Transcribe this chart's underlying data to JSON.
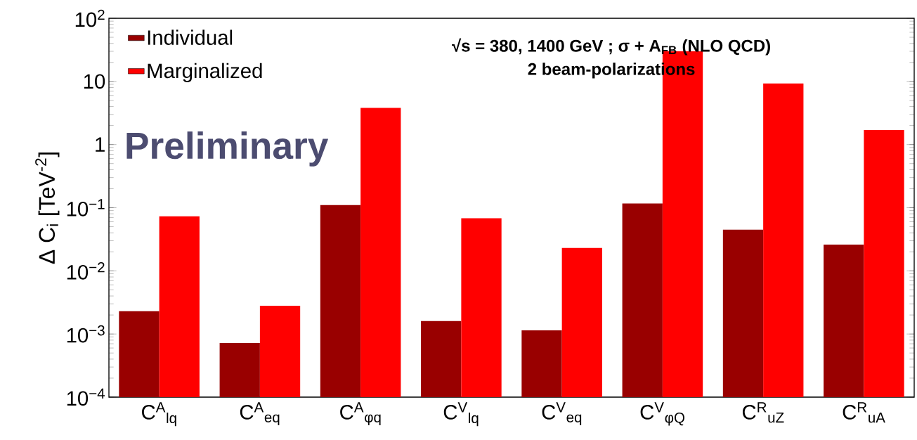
{
  "chart_data": {
    "type": "bar",
    "title": "√s = 380, 1400 GeV ; σ + A$_{FB}$ (NLO QCD)",
    "subtitle": "2 beam-polarizations",
    "ylabel": "Δ C$_{i}$ [TeV$^{-2}$]",
    "annotations": [
      "Preliminary"
    ],
    "categories": [
      "C$^{A}$$_{lq}$",
      "C$^{A}$$_{eq}$",
      "C$^{A}$$_{φq}$",
      "C$^{V}$$_{lq}$",
      "C$^{V}$$_{eq}$",
      "C$^{V}$$_{φQ}$",
      "C$^{R}$$_{uZ}$",
      "C$^{R}$$_{uA}$"
    ],
    "series": [
      {
        "name": "Individual",
        "color": "#990000",
        "values": [
          0.0023,
          0.00072,
          0.11,
          0.0016,
          0.00114,
          0.117,
          0.045,
          0.026
        ]
      },
      {
        "name": "Marginalized",
        "color": "#ff0000",
        "values": [
          0.073,
          0.0028,
          3.8,
          0.068,
          0.023,
          30,
          9.3,
          1.7
        ]
      }
    ],
    "log": "y",
    "ylim": [
      0.0001,
      100
    ],
    "yticks": [
      {
        "value": 0.0001,
        "label": "10$^{−4}$"
      },
      {
        "value": 0.001,
        "label": "10$^{−3}$"
      },
      {
        "value": 0.01,
        "label": "10$^{−2}$"
      },
      {
        "value": 0.1,
        "label": "10$^{−1}$"
      },
      1,
      10,
      {
        "value": 100,
        "label": "10$^{2}$"
      }
    ],
    "legend": "top left"
  }
}
